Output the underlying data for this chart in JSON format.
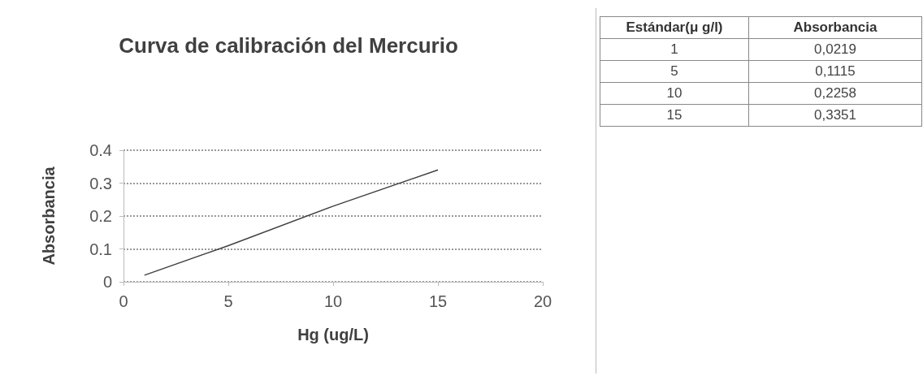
{
  "chart_data": [
    {
      "type": "line",
      "title": "Curva de calibración del Mercurio",
      "xlabel": "Hg (ug/L)",
      "ylabel": "Absorbancia",
      "x": [
        1,
        5,
        10,
        15
      ],
      "series": [
        {
          "color": "#404040",
          "values": [
            0.02,
            0.11,
            0.23,
            0.34
          ]
        }
      ],
      "xlim": [
        0,
        20
      ],
      "xticks": [
        0,
        5,
        10,
        15,
        20
      ],
      "ylim": [
        0,
        0.4
      ],
      "yticks": [
        0,
        0.1,
        0.2,
        0.3,
        0.4
      ],
      "grid": "y",
      "marker": "none",
      "line_style": "solid"
    },
    {
      "type": "other",
      "annotations": [
        "Estándar(μ g/l)",
        "Absorbancia",
        "1",
        "0,0219",
        "5",
        "0,1115",
        "10",
        "0,2258",
        "15",
        "0,3351"
      ]
    }
  ]
}
